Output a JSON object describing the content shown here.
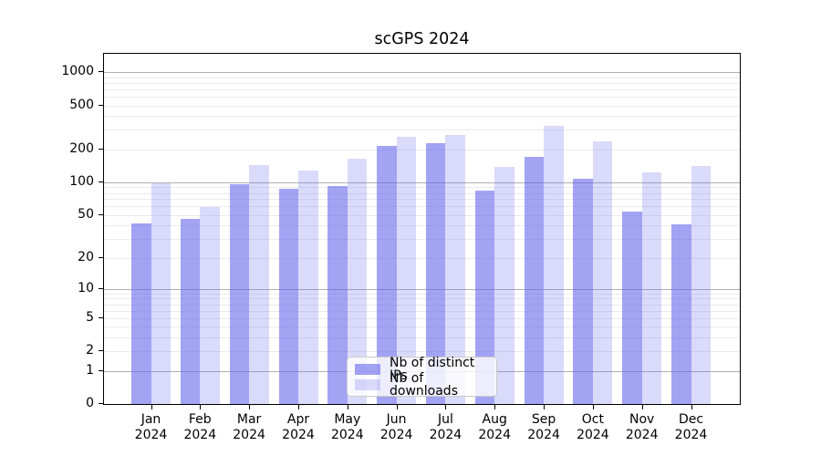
{
  "chart_data": {
    "type": "bar",
    "title": "scGPS 2024",
    "categories": [
      "Jan",
      "Feb",
      "Mar",
      "Apr",
      "May",
      "Jun",
      "Jul",
      "Aug",
      "Sep",
      "Oct",
      "Nov",
      "Dec"
    ],
    "category_year": "2024",
    "series": [
      {
        "name": "Nb of distinct IPs",
        "values": [
          42,
          46,
          97,
          87,
          93,
          215,
          227,
          84,
          170,
          108,
          54,
          41
        ],
        "color": "rgba(102,102,237,0.60)"
      },
      {
        "name": "Nb of downloads",
        "values": [
          98,
          59,
          143,
          127,
          165,
          260,
          270,
          137,
          325,
          235,
          124,
          140
        ],
        "color": "rgba(102,102,237,0.24)"
      }
    ],
    "y_axis": {
      "scale": "log10(v+1)",
      "ticks": [
        0,
        1,
        2,
        5,
        10,
        20,
        50,
        100,
        200,
        500,
        1000
      ],
      "top_value": 1520
    },
    "grid": {
      "major_lines": [
        1,
        10,
        100,
        1000
      ],
      "major_color": "#b0b0b0",
      "minor_color": "#ebebf0",
      "on": true
    },
    "legend_position": "lower center",
    "xlabel": "",
    "ylabel": ""
  }
}
